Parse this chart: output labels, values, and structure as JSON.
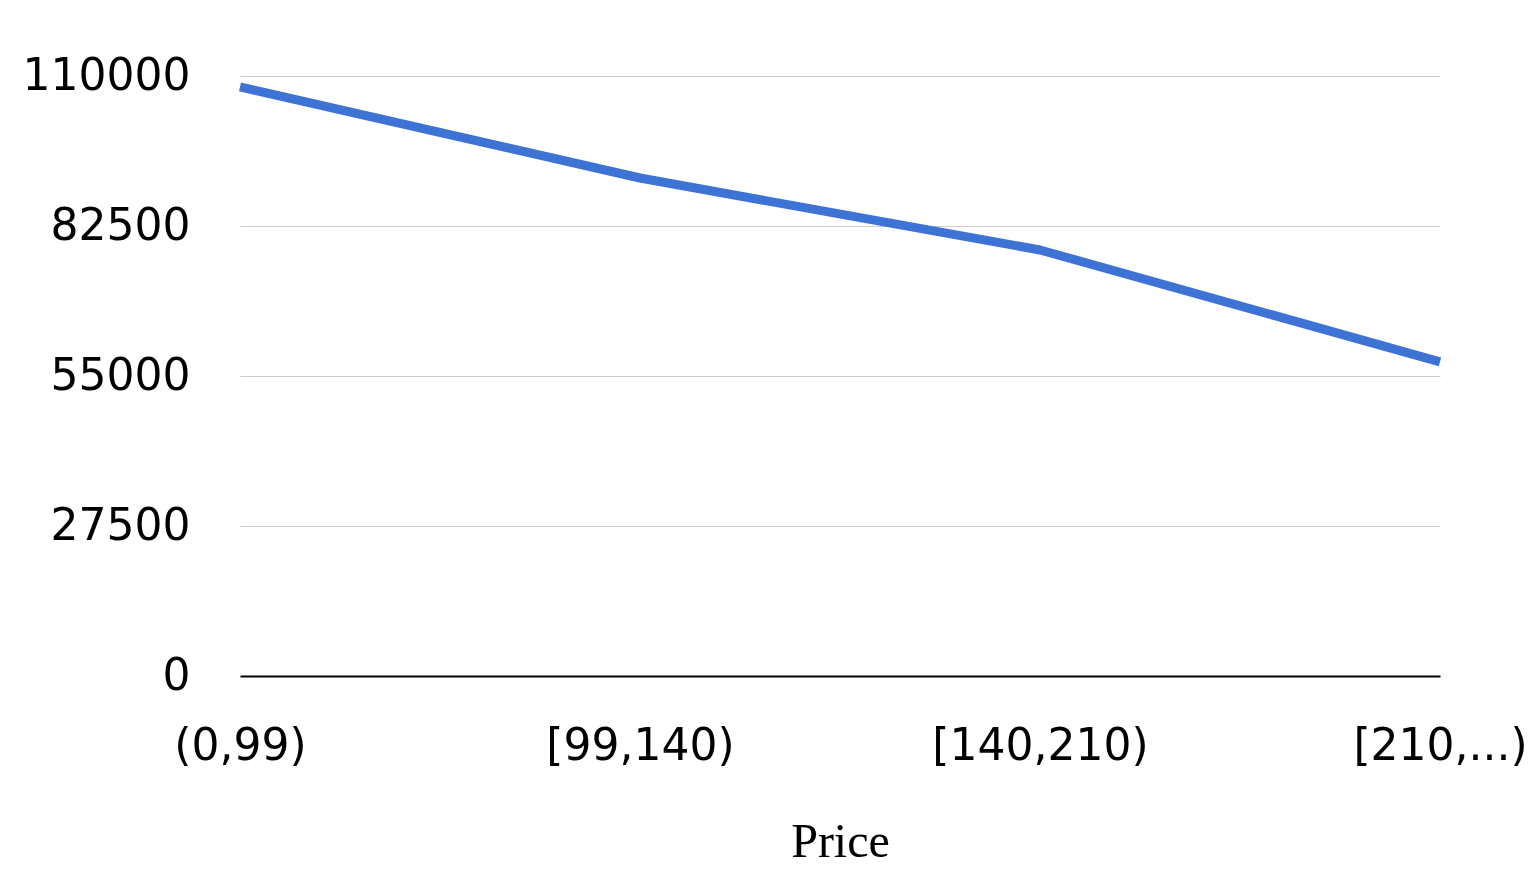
{
  "chart_data": {
    "type": "line",
    "xlabel": "Price",
    "categories": [
      "(0,99)",
      "[99,140)",
      "[140,210)",
      "[210,...)"
    ],
    "series": [
      {
        "color": "#3e73d6",
        "values": [
          108000,
          91300,
          78100,
          57600
        ]
      }
    ],
    "ylim": [
      0,
      110000
    ],
    "yticks": [
      0,
      27500,
      55000,
      82500,
      110000
    ],
    "grid": "y",
    "marker": "none",
    "line_style": "solid"
  }
}
